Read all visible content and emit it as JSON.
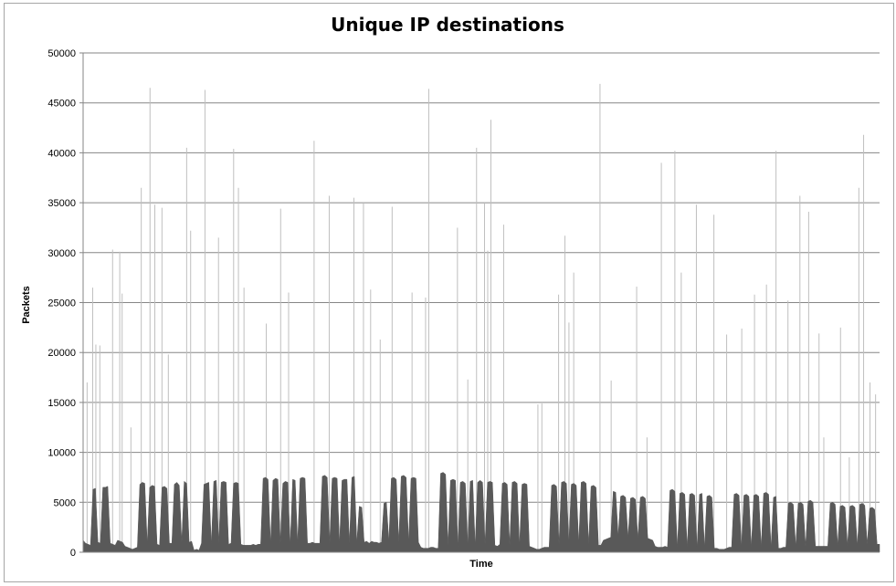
{
  "chart_data": {
    "type": "area",
    "title": "Unique IP destinations",
    "xlabel": "Time",
    "ylabel": "Packets",
    "ylim": [
      0,
      50000
    ],
    "yticks": [
      0,
      5000,
      10000,
      15000,
      20000,
      25000,
      30000,
      35000,
      40000,
      45000,
      50000
    ],
    "grid": true,
    "legend": "none",
    "colors": {
      "fill": "#595959",
      "spike": "#bfbfbf",
      "grid": "#868686"
    },
    "series": [
      {
        "values": [
          1200,
          900,
          800,
          700,
          6300,
          6400,
          1000,
          900,
          6500,
          6500,
          6600,
          900,
          800,
          700,
          1200,
          1100,
          1000,
          600,
          500,
          400,
          300,
          400,
          500,
          6800,
          7000,
          6900,
          900,
          6500,
          6700,
          6600,
          800,
          700,
          6500,
          6600,
          6400,
          900,
          900,
          6800,
          7000,
          6700,
          1000,
          7100,
          6900,
          1000,
          1100,
          200,
          300,
          200,
          900,
          6800,
          6900,
          7000,
          800,
          7100,
          7200,
          900,
          7000,
          7100,
          7000,
          800,
          900,
          6900,
          7000,
          6900,
          800,
          700,
          700,
          700,
          700,
          800,
          700,
          800,
          800,
          7400,
          7500,
          7300,
          900,
          7200,
          7400,
          7300,
          900,
          6900,
          7100,
          7000,
          800,
          7300,
          7200,
          900,
          7400,
          7500,
          7400,
          900,
          900,
          1000,
          900,
          900,
          900,
          7600,
          7700,
          7500,
          900,
          7400,
          7500,
          7400,
          900,
          7200,
          7300,
          7300,
          900,
          7500,
          7600,
          1000,
          4600,
          4500,
          1000,
          1100,
          900,
          1100,
          1000,
          1000,
          900,
          1000,
          4900,
          5000,
          1100,
          7400,
          7500,
          7300,
          1000,
          7600,
          7700,
          7500,
          1000,
          7400,
          7500,
          7400,
          1000,
          500,
          400,
          400,
          400,
          500,
          500,
          400,
          400,
          7900,
          8000,
          7800,
          700,
          7200,
          7300,
          7200,
          600,
          7000,
          7100,
          6900,
          600,
          7100,
          7200,
          700,
          7000,
          7200,
          7000,
          800,
          7000,
          7100,
          7000,
          700,
          600,
          800,
          6900,
          7000,
          6800,
          700,
          7000,
          7100,
          6900,
          700,
          6800,
          6900,
          6800,
          600,
          500,
          400,
          300,
          300,
          400,
          500,
          500,
          500,
          6700,
          6800,
          6600,
          800,
          7000,
          7100,
          6900,
          900,
          6800,
          6900,
          6700,
          900,
          7000,
          7100,
          6900,
          800,
          6600,
          6700,
          6500,
          700,
          700,
          1200,
          1300,
          1400,
          1500,
          6100,
          6000,
          1600,
          5600,
          5700,
          5500,
          1500,
          5400,
          5500,
          5300,
          1400,
          5500,
          5600,
          5400,
          1400,
          1300,
          1200,
          600,
          500,
          500,
          500,
          600,
          500,
          6200,
          6300,
          6100,
          500,
          5900,
          6000,
          5800,
          500,
          5800,
          5900,
          5700,
          500,
          5800,
          5900,
          500,
          5600,
          5700,
          5500,
          400,
          400,
          300,
          300,
          300,
          400,
          500,
          500,
          5800,
          5900,
          5700,
          500,
          5700,
          5800,
          5600,
          500,
          5700,
          5800,
          5600,
          500,
          5900,
          6000,
          5800,
          500,
          5500,
          5600,
          400,
          400,
          500,
          500,
          4900,
          5000,
          4800,
          600,
          4900,
          5000,
          4800,
          600,
          5100,
          5200,
          5000,
          600,
          600,
          600,
          600,
          600,
          600,
          4900,
          5000,
          4800,
          700,
          4600,
          4700,
          4500,
          700,
          4600,
          4700,
          4500,
          700,
          4800,
          4900,
          4700,
          800,
          4400,
          4500,
          4300,
          800,
          800
        ],
        "spikes": [
          {
            "t": 0.005,
            "v": 17000
          },
          {
            "t": 0.012,
            "v": 26500
          },
          {
            "t": 0.016,
            "v": 20800
          },
          {
            "t": 0.021,
            "v": 20700
          },
          {
            "t": 0.037,
            "v": 30300
          },
          {
            "t": 0.046,
            "v": 30100
          },
          {
            "t": 0.049,
            "v": 25900
          },
          {
            "t": 0.06,
            "v": 12500
          },
          {
            "t": 0.073,
            "v": 36500
          },
          {
            "t": 0.084,
            "v": 46500
          },
          {
            "t": 0.09,
            "v": 34800
          },
          {
            "t": 0.099,
            "v": 34500
          },
          {
            "t": 0.107,
            "v": 19800
          },
          {
            "t": 0.13,
            "v": 40500
          },
          {
            "t": 0.135,
            "v": 32200
          },
          {
            "t": 0.153,
            "v": 46300
          },
          {
            "t": 0.17,
            "v": 31500
          },
          {
            "t": 0.189,
            "v": 40400
          },
          {
            "t": 0.195,
            "v": 36500
          },
          {
            "t": 0.202,
            "v": 26500
          },
          {
            "t": 0.23,
            "v": 22900
          },
          {
            "t": 0.248,
            "v": 34400
          },
          {
            "t": 0.258,
            "v": 26000
          },
          {
            "t": 0.29,
            "v": 41200
          },
          {
            "t": 0.309,
            "v": 35700
          },
          {
            "t": 0.34,
            "v": 35500
          },
          {
            "t": 0.352,
            "v": 35000
          },
          {
            "t": 0.361,
            "v": 26300
          },
          {
            "t": 0.373,
            "v": 21300
          },
          {
            "t": 0.388,
            "v": 34600
          },
          {
            "t": 0.413,
            "v": 26000
          },
          {
            "t": 0.43,
            "v": 25500
          },
          {
            "t": 0.434,
            "v": 46400
          },
          {
            "t": 0.47,
            "v": 32500
          },
          {
            "t": 0.483,
            "v": 17300
          },
          {
            "t": 0.494,
            "v": 40500
          },
          {
            "t": 0.504,
            "v": 35000
          },
          {
            "t": 0.508,
            "v": 30200
          },
          {
            "t": 0.512,
            "v": 43300
          },
          {
            "t": 0.528,
            "v": 32800
          },
          {
            "t": 0.571,
            "v": 14800
          },
          {
            "t": 0.576,
            "v": 14900
          },
          {
            "t": 0.597,
            "v": 25800
          },
          {
            "t": 0.605,
            "v": 31700
          },
          {
            "t": 0.61,
            "v": 23000
          },
          {
            "t": 0.616,
            "v": 28000
          },
          {
            "t": 0.649,
            "v": 46900
          },
          {
            "t": 0.663,
            "v": 17200
          },
          {
            "t": 0.695,
            "v": 26600
          },
          {
            "t": 0.708,
            "v": 11500
          },
          {
            "t": 0.726,
            "v": 39000
          },
          {
            "t": 0.743,
            "v": 40200
          },
          {
            "t": 0.751,
            "v": 28000
          },
          {
            "t": 0.77,
            "v": 34800
          },
          {
            "t": 0.792,
            "v": 33800
          },
          {
            "t": 0.808,
            "v": 21800
          },
          {
            "t": 0.827,
            "v": 22400
          },
          {
            "t": 0.843,
            "v": 25800
          },
          {
            "t": 0.858,
            "v": 26800
          },
          {
            "t": 0.87,
            "v": 40200
          },
          {
            "t": 0.885,
            "v": 25200
          },
          {
            "t": 0.9,
            "v": 35700
          },
          {
            "t": 0.911,
            "v": 34100
          },
          {
            "t": 0.924,
            "v": 21900
          },
          {
            "t": 0.93,
            "v": 11500
          },
          {
            "t": 0.951,
            "v": 22500
          },
          {
            "t": 0.962,
            "v": 9500
          },
          {
            "t": 0.974,
            "v": 36500
          },
          {
            "t": 0.98,
            "v": 41800
          },
          {
            "t": 0.988,
            "v": 17000
          },
          {
            "t": 0.995,
            "v": 15800
          }
        ]
      }
    ]
  }
}
